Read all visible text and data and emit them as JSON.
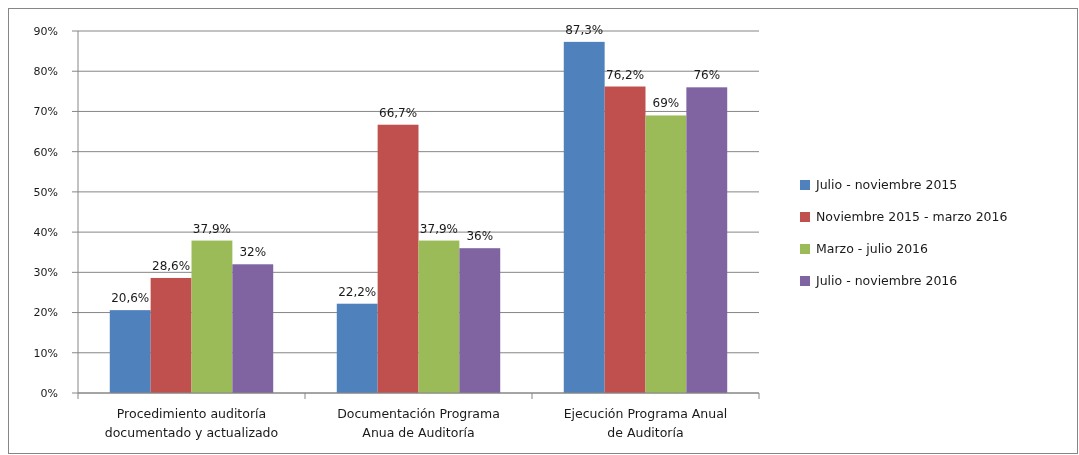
{
  "chart_data": {
    "type": "bar",
    "categories": [
      "Procedimiento auditoría documentado y actualizado",
      "Documentación Programa Anua de Auditoría",
      "Ejecución Programa Anual de Auditoría"
    ],
    "series": [
      {
        "name": "Julio - noviembre 2015",
        "color": "#4f81bd",
        "values": [
          20.6,
          22.2,
          87.3
        ],
        "value_labels": [
          "20,6%",
          "22,2%",
          "87,3%"
        ]
      },
      {
        "name": "Noviembre 2015 - marzo 2016",
        "color": "#c0504d",
        "values": [
          28.6,
          66.7,
          76.2
        ],
        "value_labels": [
          "28,6%",
          "66,7%",
          "76,2%"
        ]
      },
      {
        "name": "Marzo - julio 2016",
        "color": "#9bbb59",
        "values": [
          37.9,
          37.9,
          69
        ],
        "value_labels": [
          "37,9%",
          "37,9%",
          "69%"
        ]
      },
      {
        "name": "Julio - noviembre 2016",
        "color": "#8064a2",
        "values": [
          32,
          36,
          76
        ],
        "value_labels": [
          "32%",
          "36%",
          "76%"
        ]
      }
    ],
    "ylim": [
      0,
      90
    ],
    "yticks": [
      {
        "value": 0,
        "label": "0%"
      },
      {
        "value": 10,
        "label": "10%"
      },
      {
        "value": 20,
        "label": "20%"
      },
      {
        "value": 30,
        "label": "30%"
      },
      {
        "value": 40,
        "label": "40%"
      },
      {
        "value": 50,
        "label": "50%"
      },
      {
        "value": 60,
        "label": "60%"
      },
      {
        "value": 70,
        "label": "70%"
      },
      {
        "value": 80,
        "label": "80%"
      },
      {
        "value": 90,
        "label": "90%"
      }
    ],
    "grid": "y",
    "legend": "right"
  }
}
